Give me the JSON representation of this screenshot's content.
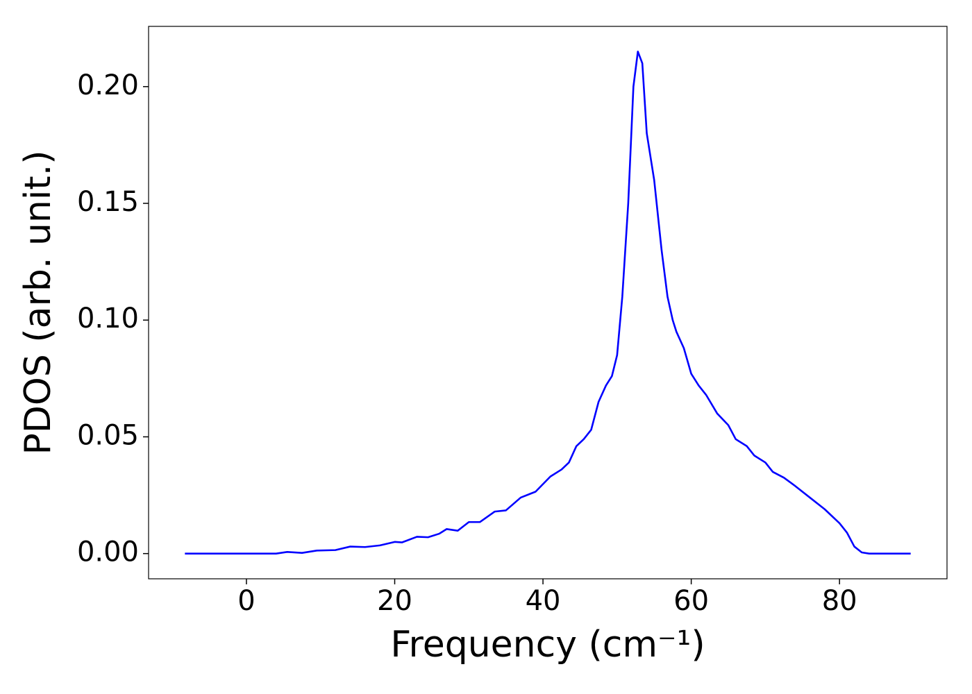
{
  "chart_data": {
    "type": "line",
    "xlabel": "Frequency (cm⁻¹)",
    "ylabel": "PDOS (arb. unit.)",
    "x": [
      -8.3,
      0,
      4,
      5.5,
      7.5,
      9.5,
      12,
      14,
      16,
      18,
      20,
      21,
      23,
      24.5,
      26,
      27,
      28.5,
      30,
      31.5,
      33.5,
      35,
      37,
      39,
      41,
      42.5,
      43.5,
      44.5,
      45.5,
      46.5,
      47.5,
      48.5,
      49.3,
      50,
      50.7,
      51.5,
      52.2,
      52.8,
      53.4,
      54,
      55,
      56,
      56.8,
      57.5,
      58,
      59,
      60,
      61,
      62,
      63.5,
      65,
      66,
      67.5,
      68.5,
      70,
      71,
      72.5,
      74,
      76,
      78,
      80,
      81,
      82,
      83,
      84,
      89.6
    ],
    "series": [
      {
        "name": "PDOS",
        "color": "#0000ff",
        "values": [
          0,
          0,
          0,
          0.0007,
          0.0003,
          0.0013,
          0.0015,
          0.003,
          0.0028,
          0.0035,
          0.005,
          0.0048,
          0.0072,
          0.007,
          0.0085,
          0.0105,
          0.0098,
          0.0135,
          0.0135,
          0.018,
          0.0185,
          0.024,
          0.0265,
          0.033,
          0.036,
          0.039,
          0.046,
          0.049,
          0.053,
          0.065,
          0.072,
          0.076,
          0.085,
          0.11,
          0.15,
          0.2,
          0.215,
          0.21,
          0.18,
          0.16,
          0.13,
          0.11,
          0.1,
          0.095,
          0.088,
          0.077,
          0.072,
          0.068,
          0.06,
          0.055,
          0.049,
          0.046,
          0.042,
          0.039,
          0.035,
          0.0325,
          0.029,
          0.024,
          0.019,
          0.013,
          0.009,
          0.003,
          0.0005,
          0,
          0
        ]
      }
    ],
    "xlim": [
      -13.2,
      94.5
    ],
    "ylim": [
      -0.0108,
      0.2258
    ],
    "xticks": [
      0,
      20,
      40,
      60,
      80
    ],
    "yticks": [
      {
        "value": 0,
        "label": "0.00"
      },
      {
        "value": 0.05,
        "label": "0.05"
      },
      {
        "value": 0.1,
        "label": "0.10"
      },
      {
        "value": 0.15,
        "label": "0.15"
      },
      {
        "value": 0.2,
        "label": "0.20"
      }
    ],
    "grid": false
  }
}
